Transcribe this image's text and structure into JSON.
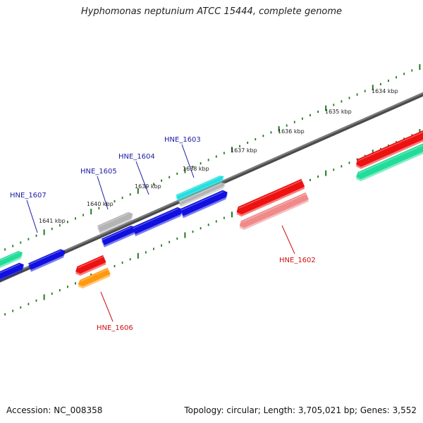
{
  "title": "Hyphomonas neptunium ATCC 15444, complete genome",
  "footer": {
    "accession": "Accession: NC_008358",
    "summary": "Topology: circular; Length: 3,705,021 bp; Genes: 3,552"
  },
  "colors": {
    "backbone": "#7a7a7a",
    "tick": "#1e7a1e",
    "forward_label": "#1a1aa6",
    "reverse_label": "#cc1111"
  },
  "scale_labels": [
    "1634 kbp",
    "1635 kbp",
    "1636 kbp",
    "1637 kbp",
    "1638 kbp",
    "1639 kbp",
    "1640 kbp",
    "1641 kbp"
  ],
  "gene_labels": [
    {
      "text": "HNE_1607",
      "strand": "forward"
    },
    {
      "text": "HNE_1605",
      "strand": "forward"
    },
    {
      "text": "HNE_1604",
      "strand": "forward"
    },
    {
      "text": "HNE_1603",
      "strand": "forward"
    },
    {
      "text": "HNE_1602",
      "strand": "reverse"
    },
    {
      "text": "HNE_1606",
      "strand": "reverse"
    }
  ],
  "features": [
    {
      "name": "feature-cyan",
      "color": "#22e0e0"
    },
    {
      "name": "feature-blue",
      "color": "#1010e0"
    },
    {
      "name": "feature-grey",
      "color": "#b4b4b4"
    },
    {
      "name": "feature-red",
      "color": "#ee1111"
    },
    {
      "name": "feature-pink",
      "color": "#f08a8a"
    },
    {
      "name": "feature-green",
      "color": "#22dd99"
    },
    {
      "name": "feature-orange",
      "color": "#ff9a10"
    }
  ]
}
